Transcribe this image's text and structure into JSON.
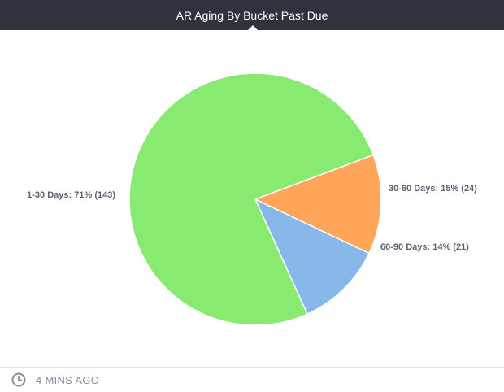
{
  "header": {
    "title": "AR Aging By Bucket Past Due"
  },
  "footer": {
    "timestamp": "4 MINS AGO",
    "icon": "clock-icon"
  },
  "colors": {
    "header_bg": "#2f333e",
    "label": "#5d6170"
  },
  "chart_data": {
    "type": "pie",
    "title": "AR Aging By Bucket Past Due",
    "slices": [
      {
        "label": "1-30 Days: 71% (143)",
        "category": "1-30 Days",
        "percent": 71,
        "value": 143,
        "color": "#88ea70"
      },
      {
        "label": "30-60 Days: 15% (24)",
        "category": "30-60 Days",
        "percent": 15,
        "value": 24,
        "color": "#ffa65a"
      },
      {
        "label": "60-90 Days: 14% (21)",
        "category": "60-90 Days",
        "percent": 14,
        "value": 21,
        "color": "#88b8ea"
      }
    ],
    "legend": "none"
  }
}
